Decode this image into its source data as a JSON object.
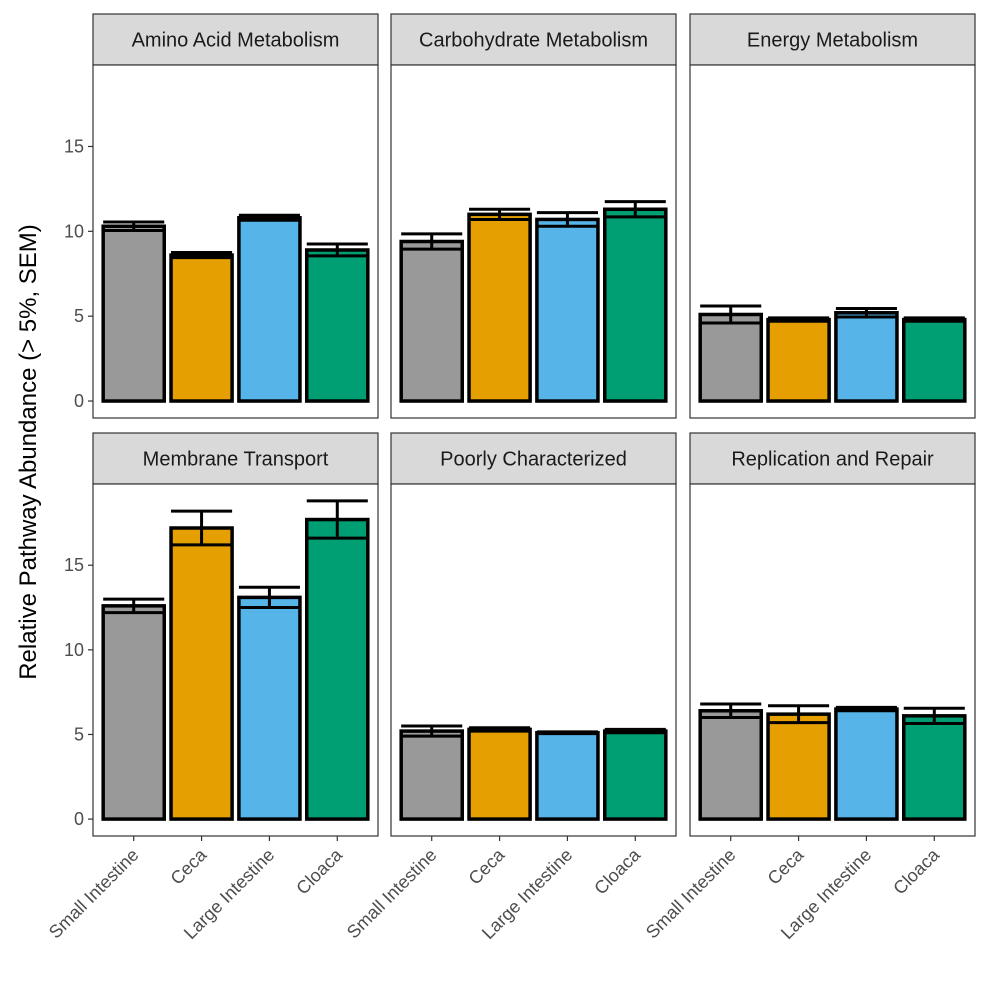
{
  "chart_data": {
    "type": "bar",
    "ylabel": "Relative Pathway Abundance (> 5%, SEM)",
    "categories": [
      "Small Intestine",
      "Ceca",
      "Large Intestine",
      "Cloaca"
    ],
    "colors": [
      "#999999",
      "#E69F00",
      "#56B4E9",
      "#009E73"
    ],
    "ylim": [
      -1,
      19.8
    ],
    "yticks": [
      0,
      5,
      10,
      15
    ],
    "grid": false,
    "legend": "none",
    "panels": [
      {
        "title": "Amino Acid Metabolism",
        "values": [
          10.3,
          8.6,
          10.8,
          8.9
        ],
        "sem": [
          0.25,
          0.15,
          0.15,
          0.35
        ]
      },
      {
        "title": "Carbohydrate Metabolism",
        "values": [
          9.4,
          11.0,
          10.7,
          11.3
        ],
        "sem": [
          0.45,
          0.3,
          0.4,
          0.45
        ]
      },
      {
        "title": "Energy Metabolism",
        "values": [
          5.1,
          4.8,
          5.2,
          4.8
        ],
        "sem": [
          0.5,
          0.1,
          0.25,
          0.1
        ]
      },
      {
        "title": "Membrane Transport",
        "values": [
          12.6,
          17.2,
          13.1,
          17.7
        ],
        "sem": [
          0.4,
          1.0,
          0.6,
          1.1
        ]
      },
      {
        "title": "Poorly Characterized",
        "values": [
          5.2,
          5.3,
          5.1,
          5.2
        ],
        "sem": [
          0.3,
          0.1,
          0.05,
          0.1
        ]
      },
      {
        "title": "Replication and Repair",
        "values": [
          6.4,
          6.2,
          6.5,
          6.1
        ],
        "sem": [
          0.4,
          0.5,
          0.1,
          0.45
        ]
      }
    ]
  }
}
